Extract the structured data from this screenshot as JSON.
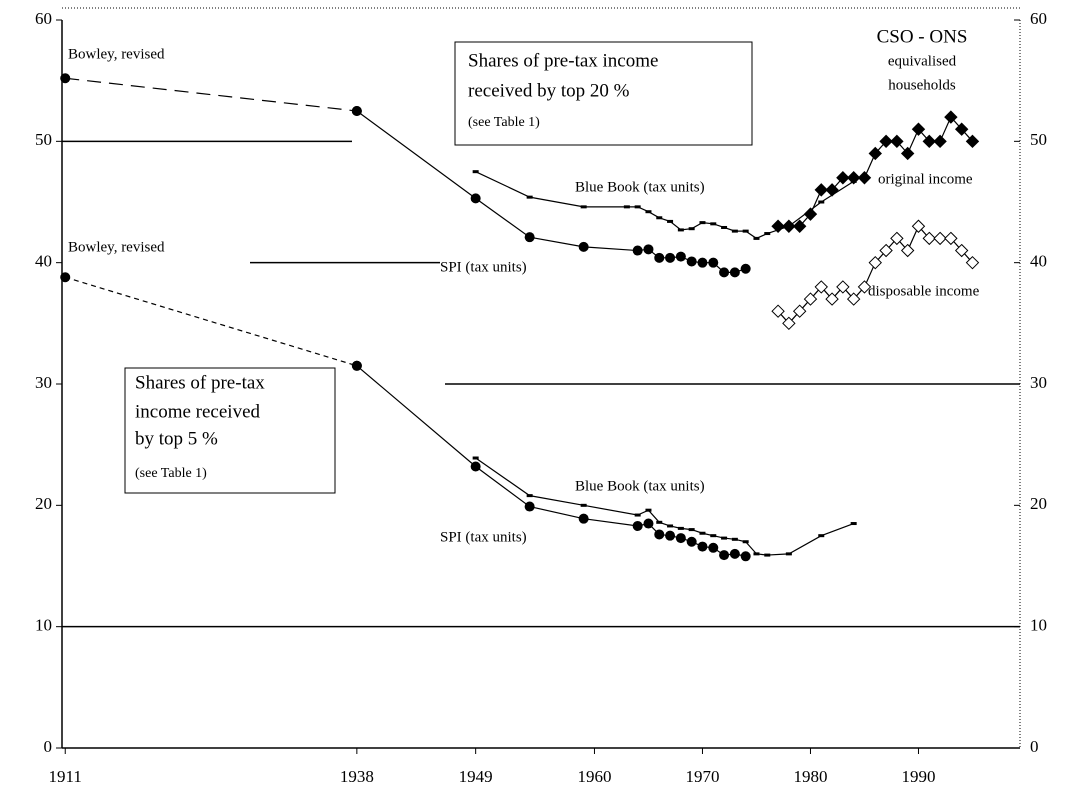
{
  "chart_data": {
    "type": "line",
    "xlim": [
      1910.7,
      1999.4
    ],
    "xticks": [
      1911,
      1938,
      1949,
      1960,
      1970,
      1980,
      1990
    ],
    "ylim": [
      0,
      60
    ],
    "yticks": [
      0,
      10,
      20,
      30,
      40,
      50,
      60
    ],
    "grid": true,
    "annotations": [
      {
        "lines": [
          "Shares of pre-tax income",
          "received by top 20 %"
        ],
        "note": "(see Table 1)"
      },
      {
        "lines": [
          "Shares of pre-tax",
          "income received",
          "by top 5 %"
        ],
        "note": "(see Table 1)"
      },
      {
        "lines": [
          "CSO - ONS",
          "equivalised",
          "households"
        ]
      }
    ],
    "series": [
      {
        "name": "Bowley, revised",
        "color": "#000000",
        "marker": "circle",
        "dashed": true,
        "x": [
          1911,
          1938
        ],
        "values": [
          55.2,
          52.5
        ]
      },
      {
        "name": "SPI (tax units)",
        "color": "#000000",
        "marker": "circle",
        "dashed": false,
        "x": [
          1938,
          1949,
          1954,
          1959,
          1964,
          1965,
          1966,
          1967,
          1968,
          1969,
          1970,
          1971,
          1972,
          1973,
          1974
        ],
        "values": [
          52.5,
          45.3,
          42.1,
          41.3,
          41.0,
          41.1,
          40.4,
          40.4,
          40.5,
          40.1,
          40.0,
          40.0,
          39.2,
          39.2,
          39.5
        ]
      },
      {
        "name": "Blue Book (tax units)",
        "color": "#000000",
        "marker": "dash",
        "dashed": false,
        "x": [
          1949,
          1954,
          1959,
          1963,
          1964,
          1965,
          1966,
          1967,
          1968,
          1969,
          1970,
          1971,
          1972,
          1973,
          1974,
          1975,
          1976,
          1978,
          1981,
          1984
        ],
        "values": [
          47.5,
          45.4,
          44.6,
          44.6,
          44.6,
          44.2,
          43.7,
          43.4,
          42.7,
          42.8,
          43.3,
          43.2,
          42.9,
          42.6,
          42.6,
          42.0,
          42.4,
          43.0,
          45.0,
          46.7
        ]
      },
      {
        "name": "original income",
        "color": "#000000",
        "marker": "diamond",
        "dashed": false,
        "x": [
          1977,
          1978,
          1979,
          1980,
          1981,
          1982,
          1983,
          1984,
          1985,
          1986,
          1987,
          1988,
          1989,
          1990,
          1991,
          1992,
          1993,
          1994,
          1995
        ],
        "values": [
          43,
          43,
          43,
          44,
          46,
          46,
          47,
          47,
          47,
          49,
          50,
          50,
          49,
          51,
          50,
          50,
          52,
          51,
          50
        ]
      },
      {
        "name": "disposable income",
        "color": "#000000",
        "marker": "open-diamond",
        "dashed": false,
        "x": [
          1977,
          1978,
          1979,
          1980,
          1981,
          1982,
          1983,
          1984,
          1985,
          1986,
          1987,
          1988,
          1989,
          1990,
          1991,
          1992,
          1993,
          1994,
          1995
        ],
        "values": [
          36,
          35,
          36,
          37,
          38,
          37,
          38,
          37,
          38,
          40,
          41,
          42,
          41,
          43,
          42,
          42,
          42,
          41,
          40
        ]
      },
      {
        "name": "Bowley, revised",
        "color": "#000000",
        "marker": "circle",
        "dashed": true,
        "x": [
          1911,
          1938
        ],
        "values": [
          38.8,
          31.5
        ]
      },
      {
        "name": "SPI (tax units)",
        "color": "#000000",
        "marker": "circle",
        "dashed": false,
        "x": [
          1938,
          1949,
          1954,
          1959,
          1964,
          1965,
          1966,
          1967,
          1968,
          1969,
          1970,
          1971,
          1972,
          1973,
          1974
        ],
        "values": [
          31.5,
          23.2,
          19.9,
          18.9,
          18.3,
          18.5,
          17.6,
          17.5,
          17.3,
          17.0,
          16.6,
          16.5,
          15.9,
          16.0,
          15.8
        ]
      },
      {
        "name": "Blue Book (tax units)",
        "color": "#000000",
        "marker": "dash",
        "dashed": false,
        "x": [
          1949,
          1954,
          1959,
          1964,
          1965,
          1966,
          1967,
          1968,
          1969,
          1970,
          1971,
          1972,
          1973,
          1974,
          1975,
          1976,
          1978,
          1981,
          1984
        ],
        "values": [
          23.9,
          20.8,
          20.0,
          19.2,
          19.6,
          18.6,
          18.3,
          18.1,
          18.0,
          17.7,
          17.5,
          17.3,
          17.2,
          17.0,
          16.0,
          15.9,
          16.0,
          17.5,
          18.5
        ]
      }
    ]
  }
}
